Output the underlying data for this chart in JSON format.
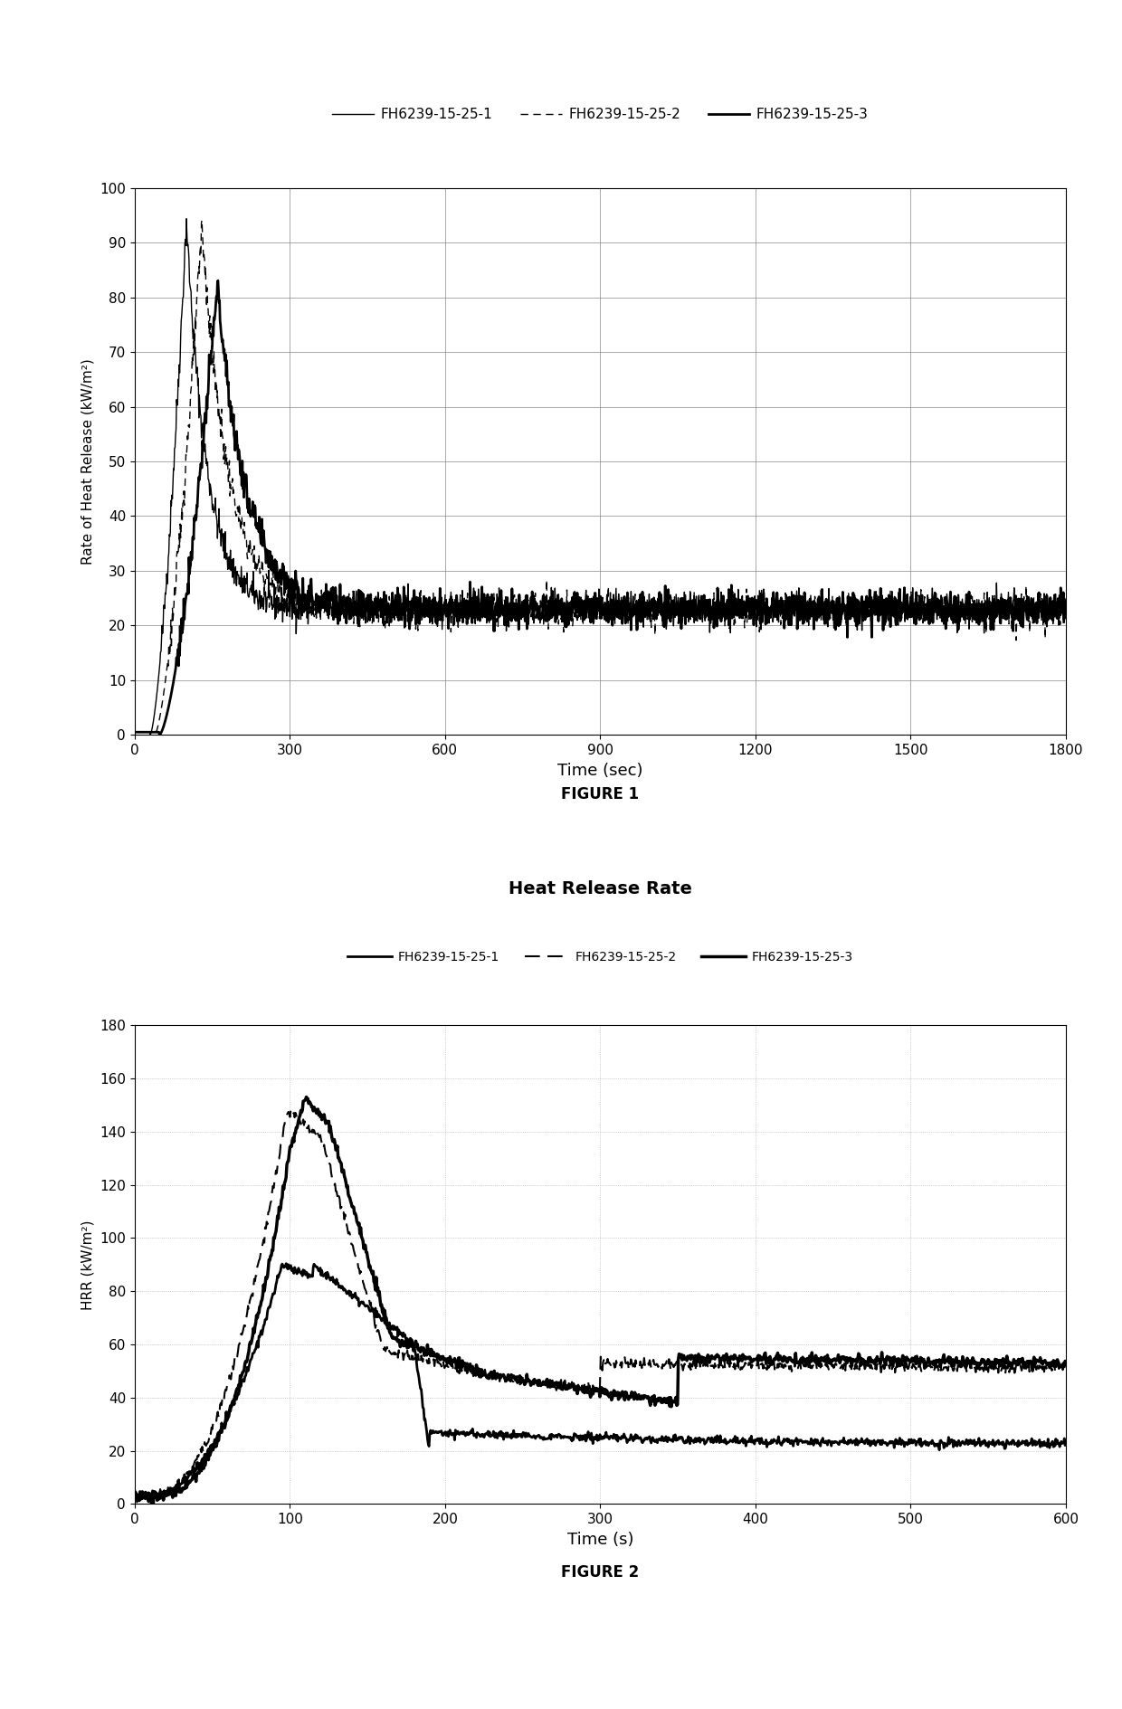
{
  "fig1": {
    "title": "FIGURE 1",
    "xlabel": "Time (sec)",
    "ylabel": "Rate of Heat Release (kW/m²)",
    "xlim": [
      0,
      1800
    ],
    "ylim": [
      0,
      100
    ],
    "xticks": [
      0,
      300,
      600,
      900,
      1200,
      1500,
      1800
    ],
    "yticks": [
      0,
      10,
      20,
      30,
      40,
      50,
      60,
      70,
      80,
      90,
      100
    ],
    "legend_labels": [
      "FH6239-15-25-1",
      "FH6239-15-25-2",
      "FH6239-15-25-3"
    ]
  },
  "fig2": {
    "title": "Heat Release Rate",
    "xlabel": "Time (s)",
    "ylabel": "HRR (kW/m²)",
    "xlim": [
      0,
      600
    ],
    "ylim": [
      0,
      180
    ],
    "xticks": [
      0,
      100,
      200,
      300,
      400,
      500,
      600
    ],
    "yticks": [
      0,
      20,
      40,
      60,
      80,
      100,
      120,
      140,
      160,
      180
    ],
    "legend_labels": [
      "FH6239-15-25-1",
      "FH6239-15-25-2",
      "FH6239-15-25-3"
    ]
  },
  "background_color": "#ffffff",
  "line_color": "#000000"
}
